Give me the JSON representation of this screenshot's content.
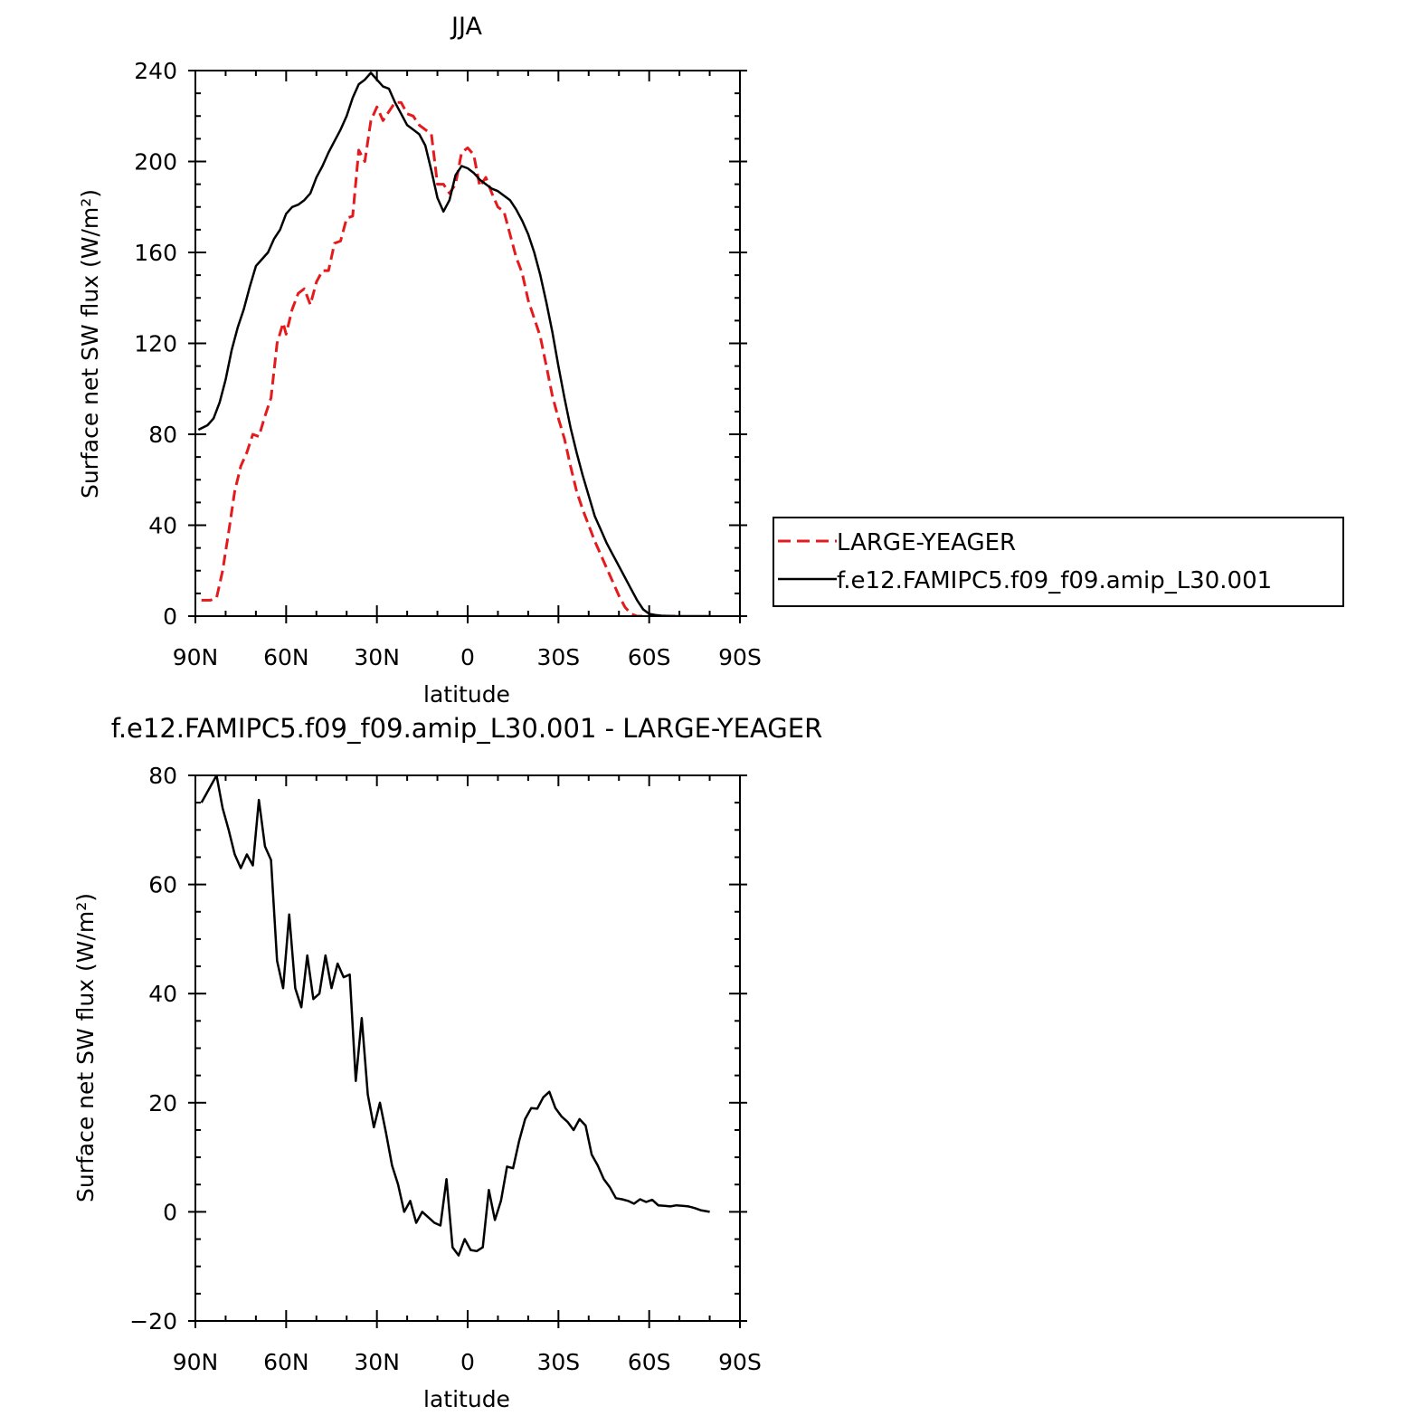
{
  "chart_data": [
    {
      "type": "line",
      "title": "JJA",
      "xlabel": "latitude",
      "ylabel": "Surface net SW flux (W/m²)",
      "xlim": [
        90,
        -90
      ],
      "ylim": [
        0,
        240
      ],
      "x_ticks": [
        90,
        60,
        30,
        0,
        -30,
        -60,
        -90
      ],
      "x_tick_labels": [
        "90N",
        "60N",
        "30N",
        "0",
        "30S",
        "60S",
        "90S"
      ],
      "y_ticks": [
        0,
        40,
        80,
        120,
        160,
        200,
        240
      ],
      "y_tick_labels": [
        "0",
        "40",
        "80",
        "120",
        "160",
        "200",
        "240"
      ],
      "legend_position": "right",
      "series": [
        {
          "name": "LARGE-YEAGER",
          "color": "#e41a1c",
          "dash": "dashed",
          "x": [
            88,
            85,
            83,
            81,
            79,
            77,
            75,
            73,
            71,
            69,
            67,
            65,
            63,
            61,
            60,
            58,
            56,
            54,
            52,
            50,
            48,
            46,
            44,
            42,
            40,
            38,
            36,
            34,
            32,
            30,
            28,
            26,
            24,
            22,
            20,
            18,
            16,
            14,
            12,
            10,
            8,
            6,
            4,
            2,
            0,
            -2,
            -4,
            -6,
            -8,
            -10,
            -12,
            -14,
            -16,
            -18,
            -20,
            -22,
            -24,
            -26,
            -28,
            -30,
            -32,
            -34,
            -36,
            -38,
            -40,
            -42,
            -44,
            -46,
            -48,
            -50,
            -52,
            -54,
            -56,
            -58,
            -60,
            -62,
            -64,
            -66,
            -68,
            -70
          ],
          "y": [
            7,
            7,
            8,
            20,
            37,
            55,
            66,
            72,
            80,
            79,
            88,
            96,
            120,
            129,
            124,
            135,
            142,
            144,
            137,
            147,
            152,
            152,
            164,
            165,
            175,
            176,
            205,
            200,
            218,
            224,
            218,
            222,
            226,
            226,
            221,
            220,
            216,
            214,
            212,
            190,
            190,
            186,
            190,
            204,
            206,
            203,
            189,
            193,
            186,
            180,
            178,
            168,
            158,
            151,
            139,
            131,
            123,
            110,
            97,
            87,
            78,
            66,
            55,
            47,
            40,
            33,
            27,
            21,
            15,
            9,
            4,
            1,
            0,
            0,
            0,
            0,
            0,
            0,
            0,
            0
          ]
        },
        {
          "name": "f.e12.FAMIPC5.f09_f09.amip_L30.001",
          "color": "#000000",
          "dash": "solid",
          "x": [
            89,
            86,
            84,
            82,
            80,
            78,
            76,
            74,
            72,
            70,
            68,
            66,
            64,
            62,
            60,
            58,
            56,
            54,
            52,
            50,
            48,
            46,
            44,
            42,
            40,
            38,
            36,
            34,
            32,
            30,
            28,
            26,
            24,
            22,
            20,
            18,
            16,
            14,
            12,
            10,
            8,
            6,
            4,
            2,
            0,
            -2,
            -4,
            -6,
            -8,
            -10,
            -12,
            -14,
            -16,
            -18,
            -20,
            -22,
            -24,
            -26,
            -28,
            -30,
            -32,
            -34,
            -36,
            -38,
            -40,
            -42,
            -44,
            -46,
            -48,
            -50,
            -52,
            -54,
            -56,
            -58,
            -60,
            -62,
            -64,
            -66,
            -68,
            -70,
            -75,
            -80
          ],
          "y": [
            82,
            84,
            87,
            94,
            104,
            117,
            127,
            135,
            145,
            154,
            157,
            160,
            166,
            170,
            177,
            180,
            181,
            183,
            186,
            193,
            198,
            204,
            209,
            214,
            220,
            228,
            234,
            236,
            239,
            236,
            233,
            232,
            226,
            221,
            216,
            214,
            212,
            207,
            196,
            184,
            178,
            183,
            194,
            198,
            197,
            195,
            192,
            190,
            188,
            187,
            185,
            183,
            179,
            174,
            168,
            160,
            150,
            138,
            125,
            110,
            96,
            83,
            72,
            62,
            53,
            44,
            38,
            32,
            27,
            22,
            17,
            12,
            7,
            3,
            1,
            0.5,
            0.2,
            0.1,
            0,
            0,
            0,
            0
          ]
        }
      ]
    },
    {
      "type": "line",
      "title": "f.e12.FAMIPC5.f09_f09.amip_L30.001 - LARGE-YEAGER",
      "xlabel": "latitude",
      "ylabel": "Surface net SW flux (W/m²)",
      "xlim": [
        90,
        -90
      ],
      "ylim": [
        -20,
        80
      ],
      "x_ticks": [
        90,
        60,
        30,
        0,
        -30,
        -60,
        -90
      ],
      "x_tick_labels": [
        "90N",
        "60N",
        "30N",
        "0",
        "30S",
        "60S",
        "90S"
      ],
      "y_ticks": [
        -20,
        0,
        20,
        40,
        60,
        80
      ],
      "y_tick_labels": [
        "−20",
        "0",
        "20",
        "40",
        "60",
        "80"
      ],
      "series": [
        {
          "name": "difference",
          "color": "#000000",
          "dash": "solid",
          "x": [
            88,
            85,
            83,
            81,
            79,
            77,
            75,
            73,
            71,
            69,
            67,
            65,
            63,
            61,
            59,
            57,
            55,
            53,
            51,
            49,
            47,
            45,
            43,
            41,
            39,
            37,
            35,
            33,
            31,
            29,
            27,
            25,
            23,
            21,
            19,
            17,
            15,
            13,
            11,
            9,
            7,
            5,
            3,
            1,
            -1,
            -3,
            -5,
            -7,
            -9,
            -11,
            -13,
            -15,
            -17,
            -19,
            -21,
            -23,
            -25,
            -27,
            -29,
            -31,
            -33,
            -35,
            -37,
            -39,
            -41,
            -43,
            -45,
            -47,
            -49,
            -51,
            -53,
            -55,
            -57,
            -59,
            -61,
            -63,
            -65,
            -67,
            -69,
            -71,
            -73,
            -75,
            -77,
            -80
          ],
          "y": [
            75,
            78,
            80,
            74,
            70,
            65.5,
            63,
            65.5,
            63.5,
            75.5,
            67,
            64.5,
            46,
            41,
            54.5,
            41,
            37.5,
            47,
            39,
            40,
            47,
            41,
            45.5,
            43,
            43.5,
            24,
            35.5,
            21.5,
            15.5,
            20,
            14.5,
            8.5,
            5,
            0,
            2,
            -2,
            0,
            -1,
            -2,
            -2.5,
            6,
            -6.5,
            -8,
            -5,
            -7,
            -7.2,
            -6.5,
            4,
            -1.5,
            2,
            8.3,
            8,
            13,
            17,
            19,
            18.9,
            21,
            22,
            19,
            17.5,
            16.5,
            15,
            17,
            15.8,
            10.5,
            8.5,
            6,
            4.5,
            2.5,
            2.3,
            2,
            1.5,
            2.3,
            1.8,
            2.2,
            1.2,
            1.1,
            1,
            1.2,
            1.1,
            1,
            0.7,
            0.3,
            0
          ]
        }
      ]
    }
  ]
}
